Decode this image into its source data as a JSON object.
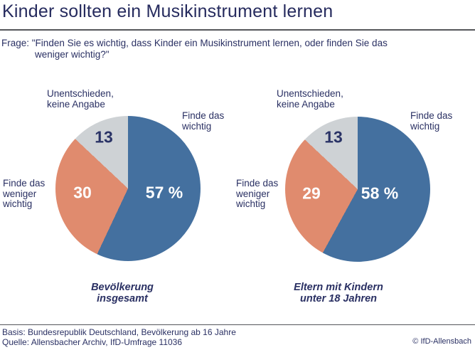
{
  "header": {
    "title": "Kinder sollten ein Musikinstrument lernen"
  },
  "question": {
    "line1": "Frage: \"Finden Sie es wichtig, dass Kinder ein Musikinstrument lernen, oder finden Sie das",
    "line2": "weniger wichtig?\""
  },
  "colors": {
    "wichtig_blue": "#44709f",
    "weniger_salmon": "#e08b6e",
    "unentschieden_gray": "#ced2d5",
    "navy_text": "#2a3063",
    "divider_gray": "#55565a"
  },
  "chart_data": [
    {
      "type": "pie",
      "title": "Bevölkerung insgesamt",
      "start_angle": "12 o'clock, clockwise",
      "slices": [
        {
          "label": "Finde das wichtig",
          "value": 57,
          "display": "57 %",
          "color": "#44709f"
        },
        {
          "label": "Finde das weniger wichtig",
          "value": 30,
          "display": "30",
          "color": "#e08b6e"
        },
        {
          "label": "Unentschieden, keine Angabe",
          "value": 13,
          "display": "13",
          "color": "#ced2d5"
        }
      ],
      "callouts": {
        "wichtig": "Finde das\nwichtig",
        "weniger": "Finde das\nweniger\nwichtig",
        "unentschieden": "Unentschieden,\nkeine Angabe"
      }
    },
    {
      "type": "pie",
      "title": "Eltern mit Kindern\nunter 18 Jahren",
      "start_angle": "12 o'clock, clockwise",
      "slices": [
        {
          "label": "Finde das wichtig",
          "value": 58,
          "display": "58 %",
          "color": "#44709f"
        },
        {
          "label": "Finde das weniger wichtig",
          "value": 29,
          "display": "29",
          "color": "#e08b6e"
        },
        {
          "label": "Unentschieden, keine Angabe",
          "value": 13,
          "display": "13",
          "color": "#ced2d5"
        }
      ],
      "callouts": {
        "wichtig": "Finde das\nwichtig",
        "weniger": "Finde das\nweniger\nwichtig",
        "unentschieden": "Unentschieden,\nkeine Angabe"
      }
    }
  ],
  "footer": {
    "basis": "Basis: Bundesrepublik Deutschland, Bevölkerung ab 16 Jahre",
    "quelle": "Quelle: Allensbacher Archiv, IfD-Umfrage 11036",
    "copyright": "© IfD-Allensbach"
  }
}
